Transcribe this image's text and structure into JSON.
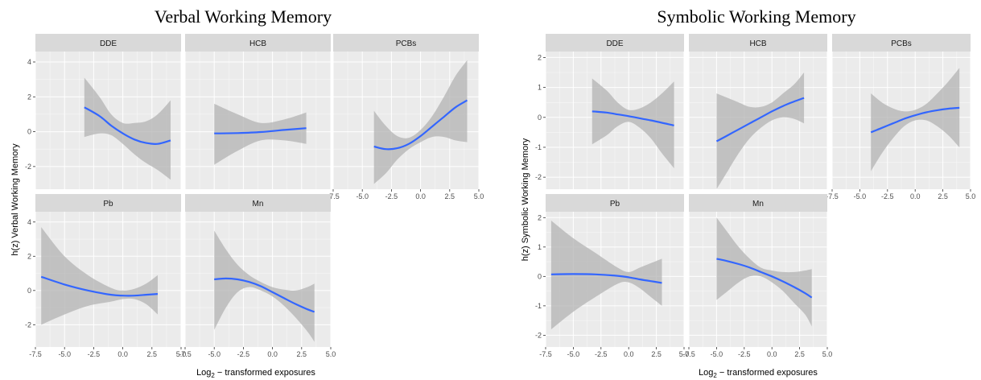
{
  "colors": {
    "panel_bg": "#ebebeb",
    "strip_bg": "#d9d9d9",
    "grid_major": "#ffffff",
    "ribbon": "#b3b3b3",
    "line": "#3366ff"
  },
  "chart_data": [
    {
      "type": "line",
      "title": "Verbal Working Memory",
      "ylabel": "h(z) Verbal Working Memory",
      "xlabel": "Log2 − transformed exposures",
      "xlabel_main": "Log",
      "xlabel_sub": "2",
      "xlabel_rest": " − transformed exposures",
      "ylim": [
        -3.3,
        4.6
      ],
      "ytick_values": [
        -2,
        0,
        2,
        4
      ],
      "ytick_labels": [
        "-2",
        "0",
        "2",
        "4"
      ],
      "grid": true,
      "panels": [
        {
          "name": "DDE",
          "xlim": [
            -7.5,
            5.0
          ],
          "x": [
            -3.3,
            -2,
            -1,
            0,
            1,
            2,
            3,
            4.1
          ],
          "y": [
            1.4,
            0.9,
            0.35,
            -0.1,
            -0.45,
            -0.65,
            -0.7,
            -0.5
          ],
          "lower": [
            -0.3,
            -0.1,
            -0.2,
            -0.7,
            -1.3,
            -1.8,
            -2.2,
            -2.75
          ],
          "upper": [
            3.1,
            2.0,
            1.0,
            0.5,
            0.5,
            0.6,
            1.0,
            1.8
          ]
        },
        {
          "name": "HCB",
          "xlim": [
            -7.5,
            5.0
          ],
          "x": [
            -5.0,
            -3,
            -1,
            1,
            2.9
          ],
          "y": [
            -0.1,
            -0.08,
            -0.02,
            0.1,
            0.2
          ],
          "lower": [
            -1.9,
            -1.1,
            -0.5,
            -0.5,
            -0.7
          ],
          "upper": [
            1.6,
            1.0,
            0.5,
            0.7,
            1.1
          ]
        },
        {
          "name": "PCBs",
          "xlim": [
            -7.5,
            5.0
          ],
          "x": [
            -4.0,
            -3,
            -2,
            -1,
            0,
            1,
            2,
            3,
            4.0
          ],
          "y": [
            -0.85,
            -1.0,
            -0.95,
            -0.7,
            -0.25,
            0.3,
            0.85,
            1.4,
            1.8
          ],
          "lower": [
            -3.0,
            -2.4,
            -1.6,
            -1.0,
            -0.6,
            -0.3,
            -0.3,
            -0.5,
            -0.6
          ],
          "upper": [
            1.2,
            0.35,
            -0.25,
            -0.35,
            0.1,
            0.9,
            2.0,
            3.2,
            4.1
          ]
        },
        {
          "name": "Pb",
          "xlim": [
            -7.5,
            5.0
          ],
          "x": [
            -7.0,
            -5,
            -3,
            -1,
            0,
            1,
            2,
            3.0
          ],
          "y": [
            0.8,
            0.35,
            0.0,
            -0.25,
            -0.3,
            -0.3,
            -0.25,
            -0.2
          ],
          "lower": [
            -2.0,
            -1.4,
            -0.9,
            -0.65,
            -0.5,
            -0.5,
            -0.8,
            -1.4
          ],
          "upper": [
            3.7,
            2.0,
            0.9,
            0.15,
            0.0,
            0.1,
            0.4,
            0.9
          ]
        },
        {
          "name": "Mn",
          "xlim": [
            -7.5,
            5.0
          ],
          "x": [
            -5.0,
            -4,
            -3,
            -2,
            -1,
            0,
            1,
            2,
            3,
            3.6
          ],
          "y": [
            0.65,
            0.7,
            0.65,
            0.5,
            0.25,
            -0.1,
            -0.45,
            -0.8,
            -1.1,
            -1.25
          ],
          "lower": [
            -2.3,
            -1.0,
            -0.1,
            0.2,
            0.0,
            -0.35,
            -0.9,
            -1.6,
            -2.4,
            -3.0
          ],
          "upper": [
            3.5,
            2.4,
            1.5,
            0.9,
            0.5,
            0.2,
            0.05,
            0.0,
            0.2,
            0.4
          ]
        }
      ]
    },
    {
      "type": "line",
      "title": "Symbolic Working Memory",
      "ylabel": "h(z) Symbolic Working Memory",
      "xlabel": "Log2 − transformed exposures",
      "xlabel_main": "Log",
      "xlabel_sub": "2",
      "xlabel_rest": " − transformed exposures",
      "ylim": [
        -2.4,
        2.2
      ],
      "ytick_values": [
        -2,
        -1,
        0,
        1,
        2
      ],
      "ytick_labels": [
        "-2",
        "-1",
        "0",
        "1",
        "2"
      ],
      "grid": true,
      "panels": [
        {
          "name": "DDE",
          "xlim": [
            -7.5,
            5.0
          ],
          "x": [
            -3.3,
            -2,
            -1,
            0,
            1,
            2,
            3,
            4.1
          ],
          "y": [
            0.2,
            0.16,
            0.1,
            0.04,
            -0.03,
            -0.1,
            -0.18,
            -0.27
          ],
          "lower": [
            -0.9,
            -0.6,
            -0.3,
            -0.15,
            -0.35,
            -0.7,
            -1.2,
            -1.7
          ],
          "upper": [
            1.3,
            0.9,
            0.5,
            0.25,
            0.3,
            0.5,
            0.8,
            1.2
          ]
        },
        {
          "name": "HCB",
          "xlim": [
            -7.5,
            5.0
          ],
          "x": [
            -5.0,
            -4,
            -3,
            -2,
            -1,
            0,
            1,
            2,
            2.9
          ],
          "y": [
            -0.8,
            -0.6,
            -0.4,
            -0.2,
            0.0,
            0.2,
            0.38,
            0.53,
            0.65
          ],
          "lower": [
            -2.4,
            -1.8,
            -1.2,
            -0.7,
            -0.35,
            -0.1,
            0.0,
            -0.05,
            -0.2
          ],
          "upper": [
            0.8,
            0.65,
            0.5,
            0.35,
            0.35,
            0.5,
            0.8,
            1.1,
            1.5
          ]
        },
        {
          "name": "PCBs",
          "xlim": [
            -7.5,
            5.0
          ],
          "x": [
            -4.0,
            -3,
            -2,
            -1,
            0,
            1,
            2,
            3,
            4.0
          ],
          "y": [
            -0.5,
            -0.35,
            -0.2,
            -0.05,
            0.07,
            0.17,
            0.24,
            0.29,
            0.32
          ],
          "lower": [
            -1.8,
            -1.2,
            -0.7,
            -0.3,
            -0.1,
            -0.1,
            -0.3,
            -0.6,
            -1.0
          ],
          "upper": [
            0.8,
            0.5,
            0.3,
            0.2,
            0.25,
            0.45,
            0.8,
            1.2,
            1.65
          ]
        },
        {
          "name": "Pb",
          "xlim": [
            -7.5,
            5.0
          ],
          "x": [
            -7.0,
            -5,
            -3,
            -1,
            0,
            1,
            2,
            3.0
          ],
          "y": [
            0.07,
            0.08,
            0.07,
            0.02,
            -0.03,
            -0.1,
            -0.16,
            -0.22
          ],
          "lower": [
            -1.8,
            -1.2,
            -0.7,
            -0.25,
            -0.2,
            -0.4,
            -0.7,
            -1.0
          ],
          "upper": [
            1.9,
            1.3,
            0.8,
            0.3,
            0.15,
            0.3,
            0.45,
            0.6
          ]
        },
        {
          "name": "Mn",
          "xlim": [
            -7.5,
            5.0
          ],
          "x": [
            -5.0,
            -4,
            -3,
            -2,
            -1,
            0,
            1,
            2,
            3,
            3.6
          ],
          "y": [
            0.6,
            0.52,
            0.42,
            0.3,
            0.15,
            0.0,
            -0.17,
            -0.36,
            -0.57,
            -0.72
          ],
          "lower": [
            -0.8,
            -0.5,
            -0.2,
            0.0,
            0.0,
            -0.2,
            -0.5,
            -0.9,
            -1.3,
            -1.7
          ],
          "upper": [
            2.0,
            1.5,
            1.0,
            0.6,
            0.3,
            0.2,
            0.15,
            0.15,
            0.2,
            0.25
          ]
        }
      ]
    }
  ]
}
